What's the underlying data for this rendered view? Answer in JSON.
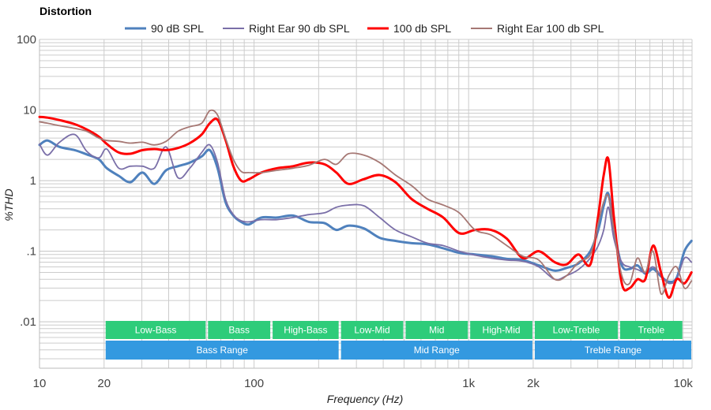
{
  "chart_data": {
    "type": "line",
    "title": "Distortion",
    "xlabel": "Frequency (Hz)",
    "ylabel": "%THD",
    "x_scale": "log",
    "y_scale": "log",
    "xlim": [
      10,
      11000
    ],
    "ylim": [
      0.0022,
      100
    ],
    "grid": true,
    "legend_position": "top-center",
    "x_ticks": [
      {
        "value": 10,
        "label": "10"
      },
      {
        "value": 20,
        "label": "20"
      },
      {
        "value": 100,
        "label": "100"
      },
      {
        "value": 1000,
        "label": "1k"
      },
      {
        "value": 2000,
        "label": "2k"
      },
      {
        "value": 10000,
        "label": "10k"
      }
    ],
    "y_ticks": [
      {
        "value": 100,
        "label": "100"
      },
      {
        "value": 10,
        "label": "10"
      },
      {
        "value": 1,
        "label": "1"
      },
      {
        "value": 0.1,
        "label": ".1"
      },
      {
        "value": 0.01,
        "label": ".01"
      }
    ],
    "note": "Series values are approximate reconstructions traced from the image (roughly ±10-20%), not exact measurements.",
    "series": [
      {
        "name": "90 dB SPL",
        "color": "#4f81bd",
        "width": "thick",
        "points": [
          [
            10,
            3.2
          ],
          [
            10.9,
            3.7
          ],
          [
            12.4,
            3.0
          ],
          [
            14.6,
            2.7
          ],
          [
            16.6,
            2.35
          ],
          [
            18.9,
            2.0
          ],
          [
            20.6,
            1.5
          ],
          [
            23.4,
            1.17
          ],
          [
            26.5,
            0.95
          ],
          [
            30.2,
            1.3
          ],
          [
            34.3,
            0.9
          ],
          [
            38.9,
            1.4
          ],
          [
            44.2,
            1.6
          ],
          [
            50.2,
            1.8
          ],
          [
            57.0,
            2.2
          ],
          [
            62.2,
            2.7
          ],
          [
            67.6,
            1.5
          ],
          [
            73.6,
            0.5
          ],
          [
            80.1,
            0.32
          ],
          [
            87.1,
            0.26
          ],
          [
            94.8,
            0.24
          ],
          [
            108,
            0.3
          ],
          [
            128,
            0.3
          ],
          [
            152,
            0.32
          ],
          [
            180,
            0.26
          ],
          [
            213,
            0.25
          ],
          [
            242,
            0.2
          ],
          [
            275,
            0.23
          ],
          [
            325,
            0.21
          ],
          [
            385,
            0.155
          ],
          [
            456,
            0.14
          ],
          [
            542,
            0.13
          ],
          [
            642,
            0.125
          ],
          [
            762,
            0.11
          ],
          [
            904,
            0.095
          ],
          [
            1072,
            0.09
          ],
          [
            1272,
            0.085
          ],
          [
            1508,
            0.078
          ],
          [
            1790,
            0.075
          ],
          [
            2123,
            0.063
          ],
          [
            2519,
            0.053
          ],
          [
            2862,
            0.058
          ],
          [
            3251,
            0.067
          ],
          [
            3693,
            0.1
          ],
          [
            4020,
            0.2
          ],
          [
            4265,
            0.44
          ],
          [
            4483,
            0.65
          ],
          [
            4757,
            0.2
          ],
          [
            5175,
            0.063
          ],
          [
            5630,
            0.056
          ],
          [
            6124,
            0.063
          ],
          [
            6661,
            0.048
          ],
          [
            7245,
            0.056
          ],
          [
            7880,
            0.044
          ],
          [
            8570,
            0.037
          ],
          [
            9320,
            0.042
          ],
          [
            10137,
            0.1
          ],
          [
            10937,
            0.14
          ]
        ]
      },
      {
        "name": "Right Ear 90 db SPL",
        "color": "#7a6fa8",
        "width": "thin",
        "points": [
          [
            10,
            3.3
          ],
          [
            10.9,
            2.3
          ],
          [
            12.4,
            3.5
          ],
          [
            14.6,
            4.5
          ],
          [
            16.6,
            2.6
          ],
          [
            18.9,
            2.1
          ],
          [
            20.6,
            2.8
          ],
          [
            23.4,
            1.5
          ],
          [
            26.5,
            1.6
          ],
          [
            30.2,
            1.6
          ],
          [
            34.3,
            1.5
          ],
          [
            38.9,
            3.0
          ],
          [
            44.2,
            1.1
          ],
          [
            50.2,
            1.5
          ],
          [
            57.0,
            2.5
          ],
          [
            62.2,
            3.2
          ],
          [
            67.6,
            1.8
          ],
          [
            73.6,
            0.55
          ],
          [
            80.1,
            0.33
          ],
          [
            87.1,
            0.27
          ],
          [
            94.8,
            0.26
          ],
          [
            108,
            0.28
          ],
          [
            128,
            0.28
          ],
          [
            152,
            0.3
          ],
          [
            180,
            0.33
          ],
          [
            213,
            0.35
          ],
          [
            242,
            0.42
          ],
          [
            275,
            0.45
          ],
          [
            325,
            0.44
          ],
          [
            385,
            0.3
          ],
          [
            456,
            0.2
          ],
          [
            542,
            0.16
          ],
          [
            642,
            0.13
          ],
          [
            762,
            0.12
          ],
          [
            904,
            0.1
          ],
          [
            1072,
            0.088
          ],
          [
            1272,
            0.08
          ],
          [
            1508,
            0.075
          ],
          [
            1790,
            0.072
          ],
          [
            2123,
            0.06
          ],
          [
            2519,
            0.04
          ],
          [
            2862,
            0.045
          ],
          [
            3251,
            0.055
          ],
          [
            3693,
            0.08
          ],
          [
            4020,
            0.12
          ],
          [
            4265,
            0.2
          ],
          [
            4483,
            0.42
          ],
          [
            4757,
            0.15
          ],
          [
            5175,
            0.07
          ],
          [
            5630,
            0.06
          ],
          [
            6124,
            0.055
          ],
          [
            6661,
            0.05
          ],
          [
            7245,
            0.06
          ],
          [
            7880,
            0.045
          ],
          [
            8570,
            0.035
          ],
          [
            9320,
            0.04
          ],
          [
            10137,
            0.08
          ],
          [
            10937,
            0.07
          ]
        ]
      },
      {
        "name": "100 db SPL",
        "color": "#ff0000",
        "width": "thick",
        "points": [
          [
            10,
            8.0
          ],
          [
            10.9,
            7.8
          ],
          [
            12.4,
            7.2
          ],
          [
            14.6,
            6.3
          ],
          [
            16.6,
            5.3
          ],
          [
            18.9,
            4.2
          ],
          [
            20.6,
            3.3
          ],
          [
            23.4,
            2.5
          ],
          [
            26.5,
            2.4
          ],
          [
            30.2,
            2.7
          ],
          [
            34.3,
            2.8
          ],
          [
            38.9,
            2.7
          ],
          [
            44.2,
            2.9
          ],
          [
            50.2,
            3.4
          ],
          [
            57.0,
            4.5
          ],
          [
            62.2,
            6.5
          ],
          [
            67.6,
            7.3
          ],
          [
            73.6,
            3.8
          ],
          [
            80.1,
            1.6
          ],
          [
            87.1,
            1.0
          ],
          [
            94.8,
            1.05
          ],
          [
            108,
            1.3
          ],
          [
            128,
            1.5
          ],
          [
            152,
            1.6
          ],
          [
            180,
            1.8
          ],
          [
            213,
            1.7
          ],
          [
            242,
            1.3
          ],
          [
            275,
            0.9
          ],
          [
            325,
            1.05
          ],
          [
            385,
            1.2
          ],
          [
            456,
            0.95
          ],
          [
            542,
            0.55
          ],
          [
            642,
            0.4
          ],
          [
            762,
            0.3
          ],
          [
            904,
            0.18
          ],
          [
            1072,
            0.2
          ],
          [
            1272,
            0.2
          ],
          [
            1508,
            0.15
          ],
          [
            1790,
            0.08
          ],
          [
            2123,
            0.1
          ],
          [
            2519,
            0.07
          ],
          [
            2862,
            0.065
          ],
          [
            3251,
            0.09
          ],
          [
            3693,
            0.065
          ],
          [
            4020,
            0.32
          ],
          [
            4265,
            1.2
          ],
          [
            4483,
            2.0
          ],
          [
            4757,
            0.3
          ],
          [
            5175,
            0.035
          ],
          [
            5630,
            0.03
          ],
          [
            6124,
            0.04
          ],
          [
            6661,
            0.04
          ],
          [
            7245,
            0.12
          ],
          [
            7880,
            0.05
          ],
          [
            8570,
            0.022
          ],
          [
            9320,
            0.04
          ],
          [
            10137,
            0.035
          ],
          [
            10937,
            0.05
          ]
        ]
      },
      {
        "name": "Right Ear 100 db SPL",
        "color": "#a67874",
        "width": "thin",
        "points": [
          [
            10,
            6.8
          ],
          [
            10.9,
            6.5
          ],
          [
            12.4,
            6.0
          ],
          [
            14.6,
            5.5
          ],
          [
            16.6,
            5.0
          ],
          [
            18.9,
            4.0
          ],
          [
            20.6,
            3.7
          ],
          [
            23.4,
            3.6
          ],
          [
            26.5,
            3.4
          ],
          [
            30.2,
            3.5
          ],
          [
            34.3,
            3.2
          ],
          [
            38.9,
            3.6
          ],
          [
            44.2,
            5.0
          ],
          [
            50.2,
            5.8
          ],
          [
            57.0,
            6.5
          ],
          [
            62.2,
            9.8
          ],
          [
            67.6,
            8.5
          ],
          [
            73.6,
            4.0
          ],
          [
            80.1,
            2.0
          ],
          [
            87.1,
            1.35
          ],
          [
            94.8,
            1.3
          ],
          [
            108,
            1.3
          ],
          [
            128,
            1.4
          ],
          [
            152,
            1.5
          ],
          [
            180,
            1.65
          ],
          [
            213,
            2.0
          ],
          [
            242,
            1.7
          ],
          [
            275,
            2.4
          ],
          [
            325,
            2.3
          ],
          [
            385,
            1.8
          ],
          [
            456,
            1.2
          ],
          [
            542,
            0.85
          ],
          [
            642,
            0.55
          ],
          [
            762,
            0.45
          ],
          [
            904,
            0.35
          ],
          [
            1072,
            0.2
          ],
          [
            1272,
            0.17
          ],
          [
            1508,
            0.12
          ],
          [
            1790,
            0.085
          ],
          [
            2123,
            0.075
          ],
          [
            2519,
            0.04
          ],
          [
            2862,
            0.045
          ],
          [
            3251,
            0.07
          ],
          [
            3693,
            0.09
          ],
          [
            4020,
            0.25
          ],
          [
            4265,
            0.5
          ],
          [
            4483,
            0.6
          ],
          [
            4757,
            0.2
          ],
          [
            5175,
            0.045
          ],
          [
            5630,
            0.035
          ],
          [
            6124,
            0.08
          ],
          [
            6661,
            0.05
          ],
          [
            7245,
            0.1
          ],
          [
            7880,
            0.025
          ],
          [
            8570,
            0.045
          ],
          [
            9320,
            0.06
          ],
          [
            10137,
            0.03
          ],
          [
            10937,
            0.038
          ]
        ]
      }
    ],
    "bands": [
      {
        "label": "Low-Bass",
        "from": 20,
        "to": 60,
        "row": "sub",
        "color": "#2ecc7a"
      },
      {
        "label": "Bass",
        "from": 60,
        "to": 120,
        "row": "sub",
        "color": "#2ecc7a"
      },
      {
        "label": "High-Bass",
        "from": 120,
        "to": 250,
        "row": "sub",
        "color": "#2ecc7a"
      },
      {
        "label": "Low-Mid",
        "from": 250,
        "to": 500,
        "row": "sub",
        "color": "#2ecc7a"
      },
      {
        "label": "Mid",
        "from": 500,
        "to": 1000,
        "row": "sub",
        "color": "#2ecc7a"
      },
      {
        "label": "High-Mid",
        "from": 1000,
        "to": 2000,
        "row": "sub",
        "color": "#2ecc7a"
      },
      {
        "label": "Low-Treble",
        "from": 2000,
        "to": 5000,
        "row": "sub",
        "color": "#2ecc7a"
      },
      {
        "label": "Treble",
        "from": 5000,
        "to": 10000,
        "row": "sub",
        "color": "#2ecc7a"
      },
      {
        "label": "Bass Range",
        "from": 20,
        "to": 250,
        "row": "range",
        "color": "#3399e0"
      },
      {
        "label": "Mid Range",
        "from": 250,
        "to": 2000,
        "row": "range",
        "color": "#3399e0"
      },
      {
        "label": "Treble Range",
        "from": 2000,
        "to": 11000,
        "row": "range",
        "color": "#3399e0"
      }
    ]
  }
}
